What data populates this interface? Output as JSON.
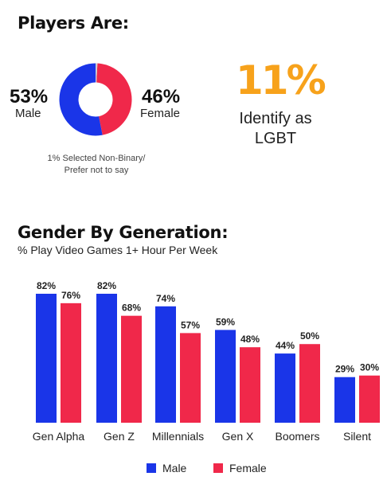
{
  "players": {
    "title": "Players Are:",
    "male": {
      "pct": "53%",
      "label": "Male",
      "value": 53
    },
    "female": {
      "pct": "46%",
      "label": "Female",
      "value": 46
    },
    "other": {
      "value": 1
    },
    "note_line1": "1% Selected Non-Binary/",
    "note_line2": "Prefer not to say",
    "lgbt_pct": "11%",
    "lgbt_line1": "Identify as",
    "lgbt_line2": "LGBT"
  },
  "colors": {
    "male": "#1a35e8",
    "female": "#f0284a",
    "accent": "#f7a21b",
    "other": "#c9c9d2"
  },
  "chart_data": [
    {
      "type": "pie",
      "labels": [
        "Male",
        "Female",
        "Non-Binary/Prefer not to say"
      ],
      "values": [
        53,
        46,
        1
      ],
      "title": "Players Are:"
    },
    {
      "type": "bar",
      "title": "Gender By Generation:",
      "subtitle": "% Play Video Games 1+ Hour Per Week",
      "categories": [
        "Gen Alpha",
        "Gen Z",
        "Millennials",
        "Gen X",
        "Boomers",
        "Silent"
      ],
      "series": [
        {
          "name": "Male",
          "values": [
            82,
            82,
            74,
            59,
            44,
            29
          ]
        },
        {
          "name": "Female",
          "values": [
            76,
            68,
            57,
            48,
            50,
            30
          ]
        }
      ],
      "value_suffix": "%",
      "ylim": [
        0,
        82
      ],
      "legend": "bottom"
    }
  ]
}
